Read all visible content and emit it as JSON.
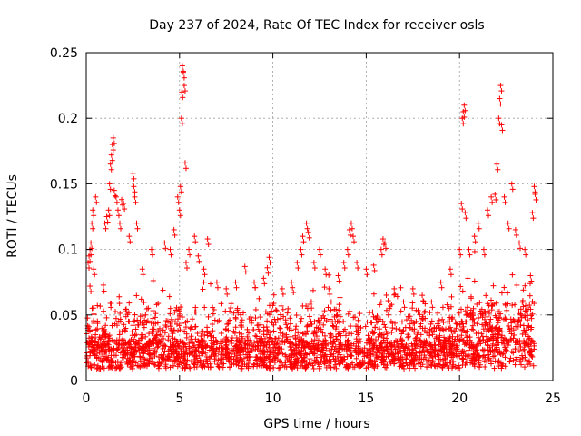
{
  "chart_data": {
    "type": "scatter",
    "title": "Day 237 of 2024, Rate Of TEC Index for receiver osls",
    "xlabel": "GPS time / hours",
    "ylabel": "ROTI / TECUs",
    "xlim": [
      0,
      25
    ],
    "ylim": [
      0,
      0.25
    ],
    "x_ticks": [
      0,
      5,
      10,
      15,
      20,
      25
    ],
    "x_tick_labels": [
      "0",
      "5",
      "10",
      "15",
      "20",
      "25"
    ],
    "y_ticks": [
      0,
      0.05,
      0.1,
      0.15,
      0.2,
      0.25
    ],
    "y_tick_labels": [
      "0",
      "0.05",
      "0.1",
      "0.15",
      "0.2",
      "0.25"
    ],
    "grid": true,
    "marker": "+",
    "color": "#ff0000",
    "series": [
      {
        "name": "ROTI",
        "points": [
          [
            0.1,
            0.09
          ],
          [
            0.15,
            0.095
          ],
          [
            0.2,
            0.1
          ],
          [
            0.25,
            0.105
          ],
          [
            0.3,
            0.12
          ],
          [
            0.35,
            0.13
          ],
          [
            0.5,
            0.14
          ],
          [
            0.4,
            0.085
          ],
          [
            0.2,
            0.072
          ],
          [
            1.0,
            0.12
          ],
          [
            1.1,
            0.125
          ],
          [
            1.2,
            0.13
          ],
          [
            1.25,
            0.15
          ],
          [
            1.3,
            0.165
          ],
          [
            1.35,
            0.172
          ],
          [
            1.4,
            0.18
          ],
          [
            1.45,
            0.185
          ],
          [
            1.5,
            0.145
          ],
          [
            1.6,
            0.14
          ],
          [
            1.7,
            0.13
          ],
          [
            1.8,
            0.12
          ],
          [
            1.9,
            0.138
          ],
          [
            2.0,
            0.135
          ],
          [
            2.3,
            0.11
          ],
          [
            2.5,
            0.158
          ],
          [
            2.55,
            0.148
          ],
          [
            2.6,
            0.14
          ],
          [
            2.7,
            0.12
          ],
          [
            3.0,
            0.085
          ],
          [
            3.5,
            0.1
          ],
          [
            4.2,
            0.105
          ],
          [
            4.5,
            0.1
          ],
          [
            4.7,
            0.115
          ],
          [
            4.9,
            0.14
          ],
          [
            5.0,
            0.13
          ],
          [
            5.05,
            0.148
          ],
          [
            5.1,
            0.2
          ],
          [
            5.12,
            0.22
          ],
          [
            5.15,
            0.24
          ],
          [
            5.2,
            0.235
          ],
          [
            5.25,
            0.225
          ],
          [
            5.3,
            0.166
          ],
          [
            5.35,
            0.09
          ],
          [
            5.5,
            0.1
          ],
          [
            5.8,
            0.11
          ],
          [
            6.0,
            0.095
          ],
          [
            6.3,
            0.085
          ],
          [
            6.5,
            0.108
          ],
          [
            7.0,
            0.075
          ],
          [
            7.5,
            0.07
          ],
          [
            8.0,
            0.075
          ],
          [
            8.5,
            0.087
          ],
          [
            9.0,
            0.075
          ],
          [
            9.5,
            0.078
          ],
          [
            9.7,
            0.086
          ],
          [
            9.8,
            0.094
          ],
          [
            10.5,
            0.07
          ],
          [
            11.0,
            0.075
          ],
          [
            11.3,
            0.09
          ],
          [
            11.5,
            0.1
          ],
          [
            11.6,
            0.11
          ],
          [
            11.8,
            0.12
          ],
          [
            11.9,
            0.113
          ],
          [
            12.2,
            0.09
          ],
          [
            12.5,
            0.1
          ],
          [
            12.8,
            0.085
          ],
          [
            13.0,
            0.07
          ],
          [
            13.5,
            0.08
          ],
          [
            13.8,
            0.09
          ],
          [
            14.0,
            0.1
          ],
          [
            14.1,
            0.115
          ],
          [
            14.2,
            0.12
          ],
          [
            14.3,
            0.11
          ],
          [
            14.5,
            0.09
          ],
          [
            15.0,
            0.085
          ],
          [
            15.4,
            0.088
          ],
          [
            15.8,
            0.1
          ],
          [
            15.9,
            0.108
          ],
          [
            16.0,
            0.105
          ],
          [
            16.5,
            0.07
          ],
          [
            17.0,
            0.06
          ],
          [
            17.5,
            0.07
          ],
          [
            18.0,
            0.065
          ],
          [
            18.5,
            0.06
          ],
          [
            19.0,
            0.075
          ],
          [
            19.5,
            0.085
          ],
          [
            20.0,
            0.1
          ],
          [
            20.1,
            0.135
          ],
          [
            20.15,
            0.2
          ],
          [
            20.2,
            0.205
          ],
          [
            20.25,
            0.21
          ],
          [
            20.3,
            0.128
          ],
          [
            20.5,
            0.1
          ],
          [
            20.8,
            0.11
          ],
          [
            21.0,
            0.12
          ],
          [
            21.3,
            0.1
          ],
          [
            21.5,
            0.13
          ],
          [
            21.7,
            0.14
          ],
          [
            21.9,
            0.142
          ],
          [
            22.0,
            0.165
          ],
          [
            22.1,
            0.2
          ],
          [
            22.15,
            0.215
          ],
          [
            22.2,
            0.225
          ],
          [
            22.25,
            0.195
          ],
          [
            22.4,
            0.14
          ],
          [
            22.6,
            0.12
          ],
          [
            22.8,
            0.15
          ],
          [
            23.0,
            0.115
          ],
          [
            23.2,
            0.105
          ],
          [
            23.5,
            0.1
          ],
          [
            23.8,
            0.08
          ],
          [
            24.0,
            0.148
          ],
          [
            24.05,
            0.142
          ],
          [
            23.9,
            0.128
          ]
        ]
      }
    ],
    "dense_band": {
      "x_range": [
        0,
        24
      ],
      "baseline_y": 0.02,
      "typical_max_y": 0.05,
      "note": "dense cloud of ROTI samples across the full day"
    }
  }
}
